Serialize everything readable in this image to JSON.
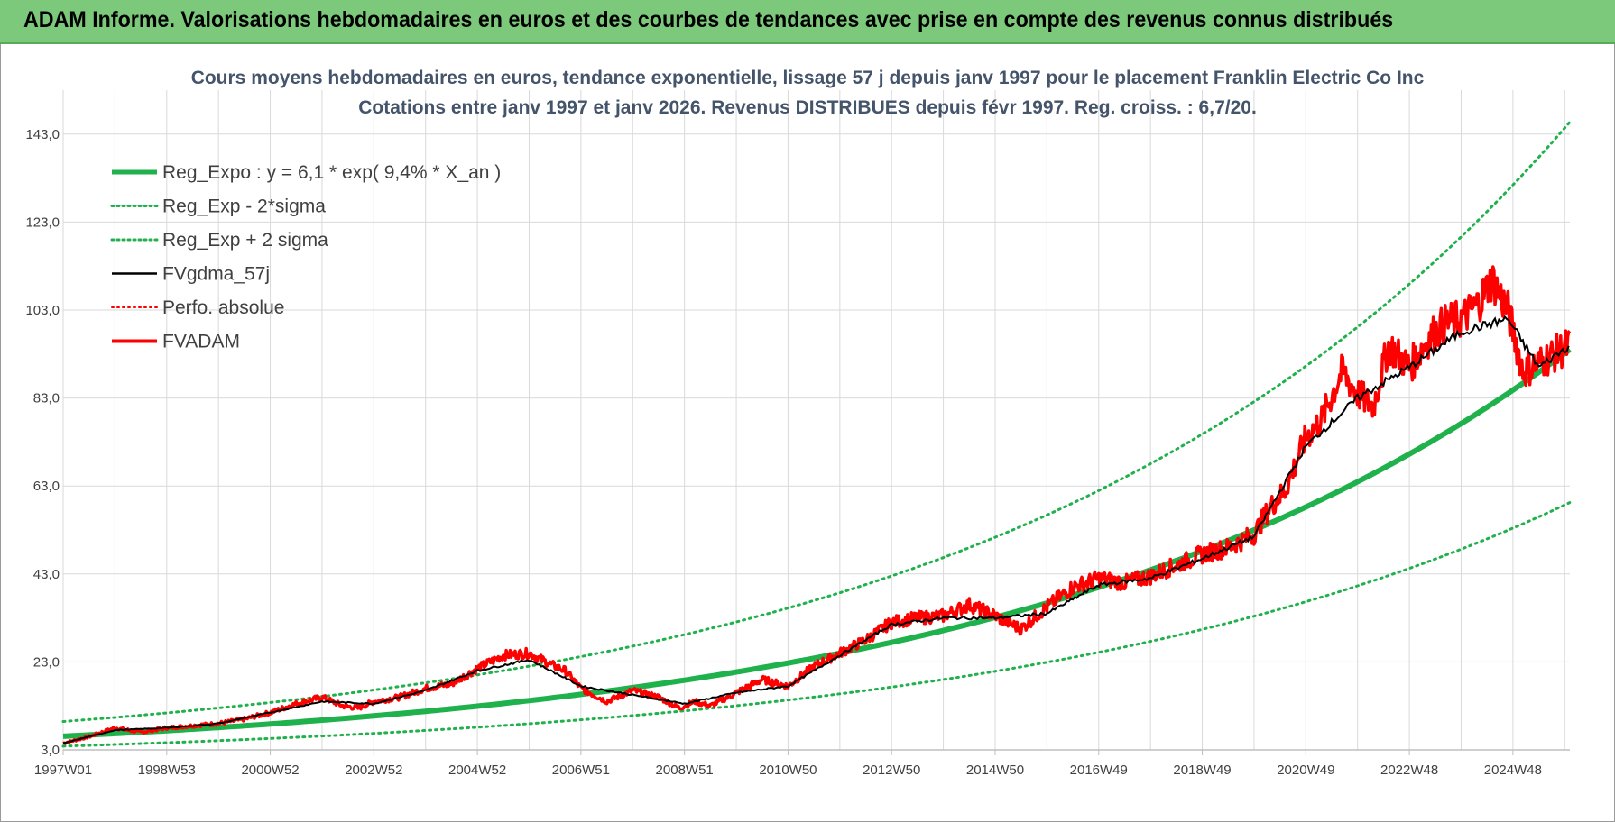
{
  "banner": {
    "title": "ADAM Informe. Valorisations hebdomadaires en euros et des courbes de tendances avec prise en compte des revenus connus distribués"
  },
  "colors": {
    "banner_bg": "#7dc97b",
    "trend_green": "#1fb14b",
    "price_red": "#ff0000",
    "smooth_black": "#000000",
    "grid": "#d9d9d9"
  },
  "chart_data": {
    "type": "line",
    "title_line1": "Cours moyens hebdomadaires en euros, tendance exponentielle, lissage 57 j depuis janv 1997 pour le placement Franklin Electric Co Inc",
    "title_line2": "Cotations entre janv 1997 et janv 2026. Revenus DISTRIBUES depuis févr 1997. Reg. croiss. : 6,7/20.",
    "xlabel": "",
    "ylabel": "",
    "x_range": [
      1997.0,
      2026.1
    ],
    "ylim": [
      3,
      153
    ],
    "y_ticks": [
      "3,0",
      "23,0",
      "43,0",
      "63,0",
      "83,0",
      "103,0",
      "123,0",
      "143,0"
    ],
    "y_tick_values": [
      3,
      23,
      43,
      63,
      83,
      103,
      123,
      143
    ],
    "x_ticks": [
      "1997W01",
      "1998W53",
      "2000W52",
      "2002W52",
      "2004W52",
      "2006W51",
      "2008W51",
      "2010W50",
      "2012W50",
      "2014W50",
      "2016W49",
      "2018W49",
      "2020W49",
      "2022W48",
      "2024W48"
    ],
    "x_tick_values": [
      1997.0,
      1999.0,
      2001.0,
      2003.0,
      2005.0,
      2007.0,
      2009.0,
      2011.0,
      2013.0,
      2015.0,
      2017.0,
      2019.0,
      2021.0,
      2023.0,
      2025.0
    ],
    "grid": true,
    "legend_position": "top-left",
    "legend": [
      {
        "label": "Reg_Expo : y = 6,1 * exp( 9,4% *  X_an )",
        "style": "solid",
        "color": "#1fb14b",
        "width": 5
      },
      {
        "label": "Reg_Exp - 2*sigma",
        "style": "dotted",
        "color": "#1fb14b",
        "width": 3
      },
      {
        "label": "Reg_Exp + 2 sigma",
        "style": "dotted",
        "color": "#1fb14b",
        "width": 3
      },
      {
        "label": "FVgdma_57j",
        "style": "solid",
        "color": "#000000",
        "width": 2.5
      },
      {
        "label": "Perfo. absolue",
        "style": "dotted",
        "color": "#ff0000",
        "width": 2
      },
      {
        "label": "FVADAM",
        "style": "solid",
        "color": "#ff0000",
        "width": 4
      }
    ],
    "trend": {
      "a": 6.1,
      "rate": 0.094,
      "t0": 1997.0,
      "lower_factor": 0.63,
      "upper_factor": 1.55
    },
    "series": [
      {
        "name": "FVADAM",
        "x": [
          1997.0,
          1997.5,
          1998.0,
          1998.5,
          1999.0,
          1999.5,
          2000.0,
          2000.5,
          2001.0,
          2001.5,
          2002.0,
          2002.4,
          2002.7,
          2003.0,
          2003.5,
          2004.0,
          2004.5,
          2005.0,
          2005.5,
          2006.0,
          2006.4,
          2006.7,
          2007.0,
          2007.5,
          2008.0,
          2008.5,
          2008.9,
          2009.2,
          2009.5,
          2010.0,
          2010.5,
          2011.0,
          2011.5,
          2012.0,
          2012.5,
          2013.0,
          2013.5,
          2014.0,
          2014.5,
          2015.0,
          2015.5,
          2016.0,
          2016.5,
          2017.0,
          2017.5,
          2018.0,
          2018.5,
          2019.0,
          2019.5,
          2020.0,
          2020.3,
          2020.6,
          2021.0,
          2021.3,
          2021.7,
          2022.0,
          2022.3,
          2022.6,
          2023.0,
          2023.4,
          2023.7,
          2024.0,
          2024.3,
          2024.6,
          2024.9,
          2025.2,
          2025.5,
          2025.8,
          2026.1
        ],
        "y": [
          4.5,
          6.0,
          8.0,
          7.0,
          8.0,
          8.5,
          9.0,
          10.0,
          11.5,
          13.5,
          15.0,
          13.0,
          12.5,
          14.0,
          15.0,
          17.0,
          18.0,
          21.5,
          24.5,
          25.0,
          22.5,
          21.0,
          17.0,
          14.0,
          16.5,
          15.0,
          12.5,
          14.0,
          13.0,
          16.0,
          19.0,
          17.5,
          22.0,
          25.0,
          28.0,
          32.0,
          33.0,
          33.5,
          36.0,
          33.5,
          30.5,
          35.5,
          40.0,
          42.0,
          41.0,
          42.5,
          45.0,
          47.5,
          49.0,
          52.0,
          58.0,
          62.0,
          74.0,
          78.0,
          89.0,
          84.0,
          81.0,
          95.0,
          90.0,
          97.0,
          100.0,
          101.0,
          104.0,
          110.0,
          103.0,
          89.0,
          91.0,
          93.0,
          95.0
        ]
      },
      {
        "name": "FVgdma_57j",
        "x": [
          1997.0,
          1998.0,
          1999.0,
          2000.0,
          2001.0,
          2002.0,
          2003.0,
          2004.0,
          2005.0,
          2006.0,
          2007.0,
          2008.0,
          2009.0,
          2010.0,
          2011.0,
          2012.0,
          2013.0,
          2014.0,
          2015.0,
          2016.0,
          2017.0,
          2018.0,
          2019.0,
          2020.0,
          2021.0,
          2022.0,
          2023.0,
          2024.0,
          2024.9,
          2025.5,
          2026.1
        ],
        "y": [
          4.5,
          7.5,
          8.0,
          9.0,
          11.5,
          14.0,
          13.5,
          16.5,
          21.0,
          23.5,
          17.5,
          15.5,
          13.5,
          16.0,
          17.5,
          24.5,
          31.5,
          33.0,
          33.0,
          34.0,
          40.5,
          42.0,
          46.5,
          51.5,
          72.0,
          83.0,
          90.0,
          98.0,
          101.0,
          90.0,
          95.0
        ]
      }
    ]
  }
}
